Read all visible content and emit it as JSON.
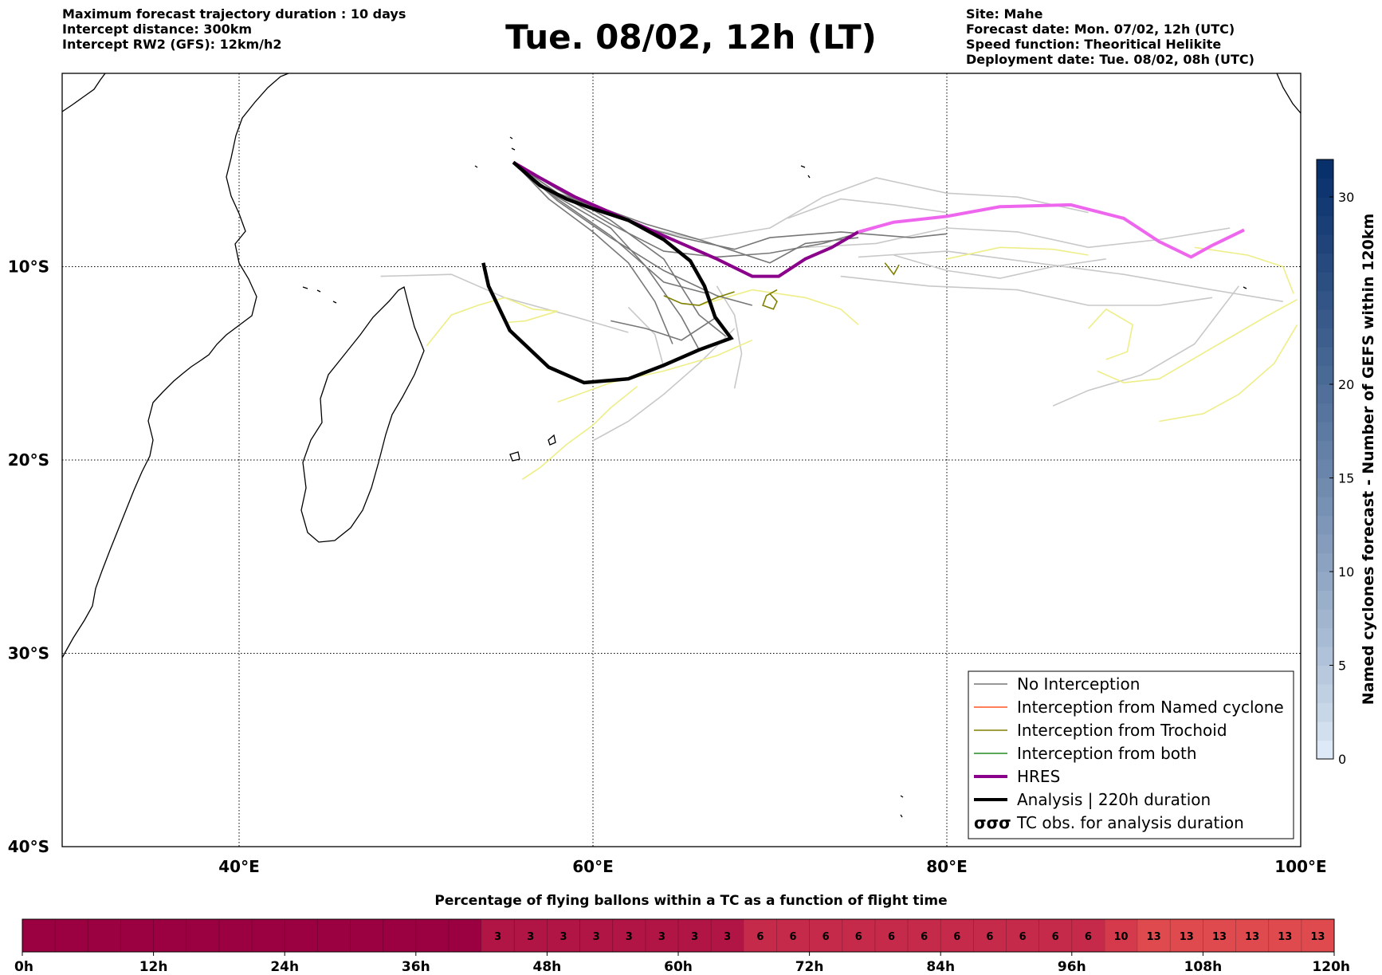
{
  "header": {
    "left_lines": [
      "Maximum forecast trajectory duration : 10 days",
      "Intercept distance: 300km",
      "Intercept RW2 (GFS):  12km/h2"
    ],
    "title": "Tue. 08/02, 12h (LT)",
    "right_lines": [
      "Site: Mahe",
      "Forecast date: Mon. 07/02, 12h (UTC)",
      "Speed function: Theoritical Helikite",
      "Deployment date: Tue. 08/02, 08h (UTC)"
    ]
  },
  "map": {
    "lon_range": [
      30,
      100
    ],
    "lat_range": [
      -40,
      0
    ],
    "lon_ticks": [
      {
        "value": 40,
        "label": "40°E"
      },
      {
        "value": 60,
        "label": "60°E"
      },
      {
        "value": 80,
        "label": "80°E"
      },
      {
        "value": 100,
        "label": "100°E"
      }
    ],
    "lat_ticks": [
      {
        "value": -10,
        "label": "10°S"
      },
      {
        "value": -20,
        "label": "20°S"
      },
      {
        "value": -30,
        "label": "30°S"
      },
      {
        "value": -40,
        "label": "40°S"
      }
    ],
    "grid": "dotted",
    "colors": {
      "no_interception": "#777777",
      "named_cyclone": "#ff5522",
      "trochoid": "#808000",
      "both": "#228B22",
      "hres": "#8b008b",
      "hres_late": "#ee66ee",
      "analysis": "#000000",
      "ensemble_light": "#c8c8c8",
      "tc_obs": "#eeee88",
      "coast": "#000000"
    },
    "trajectories": {
      "hres": [
        [
          55.5,
          -4.6
        ],
        [
          57,
          -5.4
        ],
        [
          59,
          -6.4
        ],
        [
          61,
          -7.2
        ],
        [
          63,
          -8
        ],
        [
          65,
          -8.8
        ],
        [
          67,
          -9.6
        ],
        [
          69,
          -10.5
        ],
        [
          70.5,
          -10.5
        ],
        [
          72,
          -9.6
        ],
        [
          73.5,
          -9
        ],
        [
          75,
          -8.2
        ]
      ],
      "hres_late": [
        [
          75,
          -8.2
        ],
        [
          77,
          -7.7
        ],
        [
          80,
          -7.4
        ],
        [
          83,
          -6.9
        ],
        [
          87,
          -6.8
        ],
        [
          90,
          -7.5
        ],
        [
          92,
          -8.7
        ],
        [
          93.8,
          -9.5
        ],
        [
          95,
          -8.9
        ],
        [
          96.8,
          -8.1
        ]
      ],
      "analysis": [
        [
          55.5,
          -4.6
        ],
        [
          57,
          -5.8
        ],
        [
          58.5,
          -6.5
        ],
        [
          60,
          -7
        ],
        [
          62,
          -7.6
        ],
        [
          64,
          -8.6
        ],
        [
          65.5,
          -9.7
        ],
        [
          66.3,
          -11
        ],
        [
          66.9,
          -12.6
        ],
        [
          67.8,
          -13.7
        ],
        [
          66,
          -14.3
        ],
        [
          64,
          -15.1
        ],
        [
          62,
          -15.8
        ],
        [
          59.5,
          -16
        ],
        [
          57.5,
          -15.2
        ],
        [
          55.3,
          -13.3
        ],
        [
          54.1,
          -11
        ],
        [
          53.8,
          -9.8
        ]
      ],
      "no_interception": [
        [
          [
            55.5,
            -4.6
          ],
          [
            58,
            -6.2
          ],
          [
            61,
            -7.2
          ],
          [
            63,
            -8
          ],
          [
            65,
            -8.5
          ],
          [
            68,
            -9.1
          ],
          [
            70,
            -8.5
          ],
          [
            74,
            -8.2
          ],
          [
            78,
            -8.5
          ],
          [
            80,
            -8.3
          ]
        ],
        [
          [
            55.5,
            -4.6
          ],
          [
            58,
            -6
          ],
          [
            61,
            -7.6
          ],
          [
            64,
            -9.6
          ],
          [
            66,
            -12.5
          ],
          [
            67.5,
            -13.6
          ]
        ],
        [
          [
            55.5,
            -4.6
          ],
          [
            58,
            -6.4
          ],
          [
            61,
            -8
          ],
          [
            63,
            -10
          ],
          [
            65,
            -12.6
          ],
          [
            66,
            -14.3
          ]
        ],
        [
          [
            55.5,
            -4.6
          ],
          [
            58,
            -6.2
          ],
          [
            61,
            -7.8
          ],
          [
            64,
            -9.2
          ],
          [
            67,
            -9.5
          ],
          [
            70,
            -9.3
          ],
          [
            73,
            -8.8
          ],
          [
            76,
            -8
          ]
        ],
        [
          [
            55.5,
            -4.6
          ],
          [
            57.5,
            -6.5
          ],
          [
            60,
            -8.2
          ],
          [
            62,
            -9.8
          ],
          [
            63.5,
            -11.8
          ],
          [
            64.5,
            -14
          ]
        ],
        [
          [
            55.5,
            -4.6
          ],
          [
            58,
            -6.6
          ],
          [
            61,
            -8.5
          ],
          [
            64,
            -10.2
          ],
          [
            67,
            -11.5
          ],
          [
            69,
            -12
          ]
        ],
        [
          [
            55.5,
            -4.6
          ],
          [
            58,
            -6
          ],
          [
            60,
            -6.8
          ],
          [
            63,
            -7.8
          ],
          [
            66,
            -8.6
          ],
          [
            70,
            -9.8
          ],
          [
            72,
            -8.8
          ],
          [
            75,
            -8.5
          ]
        ],
        [
          [
            61,
            -12.8
          ],
          [
            63,
            -13.2
          ],
          [
            65,
            -13.8
          ],
          [
            67,
            -12.6
          ]
        ],
        [
          [
            55.5,
            -4.6
          ],
          [
            58,
            -6.5
          ],
          [
            61,
            -8.4
          ],
          [
            64,
            -10.8
          ],
          [
            66.5,
            -11.4
          ]
        ]
      ],
      "trochoid": [
        [
          [
            64,
            -11.5
          ],
          [
            65,
            -11.9
          ],
          [
            66,
            -12
          ],
          [
            67,
            -11.6
          ],
          [
            68,
            -11.3
          ]
        ],
        [
          [
            70,
            -11.4
          ],
          [
            70.4,
            -11.8
          ],
          [
            70.2,
            -12.2
          ],
          [
            69.6,
            -12
          ],
          [
            69.8,
            -11.5
          ],
          [
            70.4,
            -11.2
          ]
        ],
        [
          [
            76.5,
            -9.8
          ],
          [
            77,
            -10.4
          ],
          [
            77.3,
            -9.9
          ]
        ]
      ],
      "ensemble_light": [
        [
          [
            63,
            -8
          ],
          [
            66,
            -8.6
          ],
          [
            70,
            -8
          ],
          [
            73,
            -6.4
          ],
          [
            76,
            -5.4
          ],
          [
            80,
            -6.2
          ],
          [
            84,
            -6.4
          ],
          [
            88,
            -7.2
          ]
        ],
        [
          [
            48,
            -10.5
          ],
          [
            52,
            -10.4
          ],
          [
            55,
            -11.6
          ],
          [
            59,
            -12.6
          ],
          [
            62,
            -13.4
          ]
        ],
        [
          [
            60,
            -19
          ],
          [
            62,
            -18
          ],
          [
            64,
            -16.6
          ],
          [
            66,
            -15
          ],
          [
            68,
            -13.2
          ]
        ],
        [
          [
            75,
            -9.5
          ],
          [
            80,
            -9.2
          ],
          [
            85,
            -9.8
          ],
          [
            90,
            -10.4
          ],
          [
            95,
            -11.2
          ],
          [
            99,
            -11.8
          ]
        ],
        [
          [
            72,
            -9
          ],
          [
            76,
            -8.8
          ],
          [
            80,
            -8
          ],
          [
            84,
            -8.2
          ],
          [
            88,
            -9
          ],
          [
            92,
            -8.6
          ],
          [
            96,
            -8
          ]
        ],
        [
          [
            74,
            -10.5
          ],
          [
            79,
            -11
          ],
          [
            84,
            -11.2
          ],
          [
            88,
            -12
          ],
          [
            92,
            -12
          ],
          [
            95,
            -11.6
          ]
        ],
        [
          [
            86,
            -17.2
          ],
          [
            88,
            -16.4
          ],
          [
            91,
            -15.6
          ],
          [
            94,
            -14
          ],
          [
            96.5,
            -11
          ]
        ],
        [
          [
            67,
            -11
          ],
          [
            68,
            -12.5
          ],
          [
            68.4,
            -14.5
          ],
          [
            68,
            -16.3
          ]
        ],
        [
          [
            62,
            -12.1
          ],
          [
            63.5,
            -13.5
          ],
          [
            64,
            -15.2
          ]
        ],
        [
          [
            77,
            -9.4
          ],
          [
            80,
            -10.2
          ],
          [
            83,
            -10.6
          ],
          [
            86,
            -10
          ],
          [
            89,
            -9.6
          ]
        ],
        [
          [
            71,
            -7.5
          ],
          [
            74,
            -6.5
          ],
          [
            77,
            -6.8
          ],
          [
            80,
            -7.2
          ]
        ]
      ],
      "tc_obs": [
        [
          [
            50.6,
            -14.1
          ],
          [
            52,
            -12.5
          ],
          [
            53.5,
            -12
          ],
          [
            55,
            -11.6
          ],
          [
            56.6,
            -12.2
          ],
          [
            58,
            -12.3
          ],
          [
            56.2,
            -12.8
          ],
          [
            55,
            -12.9
          ]
        ],
        [
          [
            58,
            -17
          ],
          [
            61,
            -16
          ],
          [
            64,
            -15.4
          ],
          [
            67,
            -14.6
          ],
          [
            69,
            -13.8
          ]
        ],
        [
          [
            56,
            -21
          ],
          [
            57,
            -20.4
          ],
          [
            58.5,
            -19.2
          ],
          [
            60,
            -18.2
          ],
          [
            61,
            -17.3
          ],
          [
            62.5,
            -16.2
          ]
        ],
        [
          [
            66,
            -12
          ],
          [
            69,
            -11.2
          ],
          [
            72,
            -11.6
          ],
          [
            74,
            -12.2
          ],
          [
            75,
            -13
          ]
        ],
        [
          [
            80,
            -9.6
          ],
          [
            83,
            -9
          ],
          [
            86,
            -9.1
          ],
          [
            88,
            -9.4
          ]
        ],
        [
          [
            88,
            -13.2
          ],
          [
            89,
            -12.2
          ],
          [
            90.5,
            -13
          ],
          [
            90.2,
            -14.4
          ],
          [
            89,
            -14.8
          ]
        ],
        [
          [
            88.5,
            -15.4
          ],
          [
            90,
            -16
          ],
          [
            92,
            -15.8
          ],
          [
            93.5,
            -15
          ],
          [
            95,
            -14.2
          ],
          [
            96.5,
            -13.4
          ],
          [
            98,
            -12.6
          ],
          [
            99.8,
            -11.7
          ]
        ],
        [
          [
            92,
            -18
          ],
          [
            94.5,
            -17.6
          ],
          [
            96.5,
            -16.6
          ],
          [
            98.5,
            -15
          ],
          [
            99.8,
            -13
          ]
        ],
        [
          [
            94,
            -9
          ],
          [
            97,
            -9.4
          ],
          [
            99,
            -10
          ],
          [
            99.6,
            -11.4
          ]
        ]
      ]
    }
  },
  "legend": {
    "items": [
      {
        "label": "No Interception",
        "style": "thin-gray"
      },
      {
        "label": "Interception from Named cyclone",
        "style": "thin-orange"
      },
      {
        "label": "Interception from Trochoid",
        "style": "thin-olive"
      },
      {
        "label": "Interception from both",
        "style": "thin-green"
      },
      {
        "label": "HRES",
        "style": "thick-purple"
      },
      {
        "label": "Analysis | 220h duration",
        "style": "thick-black"
      },
      {
        "label": "TC obs. for analysis duration",
        "style": "tc-symbol"
      }
    ],
    "tc_symbol": "σσσ"
  },
  "colorbar_right": {
    "title": "Named cyclones forecast - Number of GEFS within 120km",
    "min": 0,
    "max": 32,
    "ticks": [
      "0",
      "5",
      "10",
      "15",
      "20",
      "30"
    ],
    "tick_values": [
      0,
      5,
      10,
      15,
      20,
      30
    ],
    "color_low": "#dde9f6",
    "color_high": "#08306b"
  },
  "bottom_bar": {
    "title": "Percentage of flying ballons within a TC as a function of flight time",
    "hour_labels": [
      "0h",
      "12h",
      "24h",
      "36h",
      "48h",
      "60h",
      "72h",
      "84h",
      "96h",
      "108h",
      "120h"
    ],
    "hours_max": 120,
    "cell_hours": 3,
    "segments": [
      {
        "from": 0,
        "to": 42,
        "pct": "",
        "color": "#9b0040"
      },
      {
        "from": 42,
        "to": 66,
        "pct": "3",
        "color": "#b01545"
      },
      {
        "from": 66,
        "to": 99,
        "pct": "6",
        "color": "#c62a4a"
      },
      {
        "from": 99,
        "to": 102,
        "pct": "10",
        "color": "#d43a4c"
      },
      {
        "from": 102,
        "to": 120,
        "pct": "13",
        "color": "#df4a4e"
      }
    ]
  }
}
